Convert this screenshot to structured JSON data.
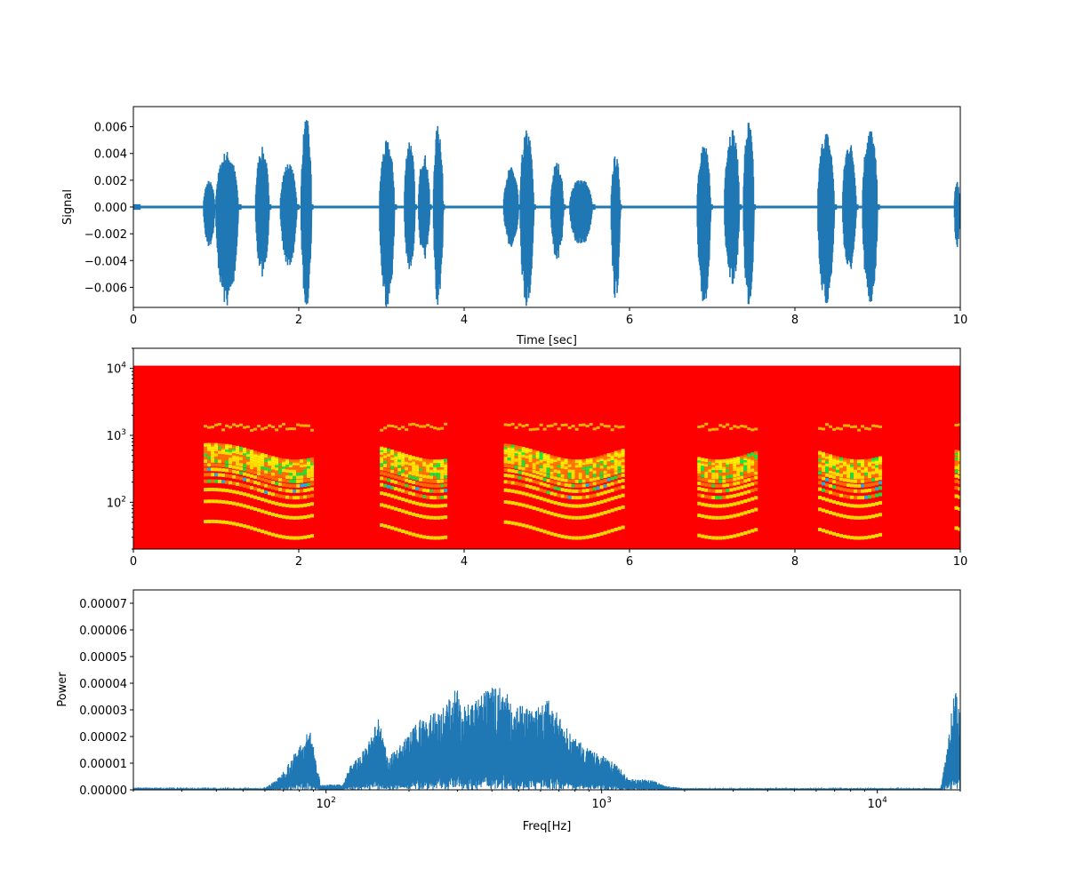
{
  "colors": {
    "line": "#1f77b4",
    "spec_bg": "#ff0000",
    "spec_mid": "#ffff00",
    "spec_high": "#00ff40",
    "spec_peak": "#00c8ff"
  },
  "chart_data": [
    {
      "type": "line",
      "xlabel": "Time [sec]",
      "ylabel": "Signal",
      "xlim": [
        0,
        10
      ],
      "ylim": [
        -0.0075,
        0.0075
      ],
      "xticks": [
        "0",
        "2",
        "4",
        "6",
        "8",
        "10"
      ],
      "yticks": [
        "0.006",
        "0.004",
        "0.002",
        "0.000",
        "−0.002",
        "−0.004",
        "−0.006"
      ],
      "grid": false,
      "envelope_bursts": [
        {
          "start": 0.0,
          "end": 0.08,
          "max": 0.0002,
          "min": -0.0002
        },
        {
          "start": 0.85,
          "end": 1.0,
          "max": 0.002,
          "min": -0.003
        },
        {
          "start": 1.0,
          "end": 1.3,
          "max": 0.0042,
          "min": -0.0075
        },
        {
          "start": 1.48,
          "end": 1.66,
          "max": 0.0045,
          "min": -0.0052
        },
        {
          "start": 1.78,
          "end": 2.0,
          "max": 0.0033,
          "min": -0.0045
        },
        {
          "start": 2.03,
          "end": 2.17,
          "max": 0.0067,
          "min": -0.0075
        },
        {
          "start": 2.98,
          "end": 3.18,
          "max": 0.005,
          "min": -0.0075
        },
        {
          "start": 3.28,
          "end": 3.42,
          "max": 0.0052,
          "min": -0.005
        },
        {
          "start": 3.45,
          "end": 3.6,
          "max": 0.004,
          "min": -0.004
        },
        {
          "start": 3.63,
          "end": 3.76,
          "max": 0.0062,
          "min": -0.0075
        },
        {
          "start": 4.48,
          "end": 4.68,
          "max": 0.003,
          "min": -0.003
        },
        {
          "start": 4.68,
          "end": 4.86,
          "max": 0.0058,
          "min": -0.0075
        },
        {
          "start": 5.05,
          "end": 5.22,
          "max": 0.0034,
          "min": -0.004
        },
        {
          "start": 5.28,
          "end": 5.58,
          "max": 0.0022,
          "min": -0.003
        },
        {
          "start": 5.78,
          "end": 5.9,
          "max": 0.0039,
          "min": -0.007
        },
        {
          "start": 6.82,
          "end": 7.0,
          "max": 0.0048,
          "min": -0.0075
        },
        {
          "start": 7.15,
          "end": 7.35,
          "max": 0.006,
          "min": -0.006
        },
        {
          "start": 7.38,
          "end": 7.52,
          "max": 0.0065,
          "min": -0.0075
        },
        {
          "start": 8.28,
          "end": 8.5,
          "max": 0.0057,
          "min": -0.0075
        },
        {
          "start": 8.58,
          "end": 8.76,
          "max": 0.005,
          "min": -0.005
        },
        {
          "start": 8.82,
          "end": 9.02,
          "max": 0.006,
          "min": -0.0075
        },
        {
          "start": 9.93,
          "end": 10.0,
          "max": 0.002,
          "min": -0.0032
        }
      ]
    },
    {
      "type": "heatmap",
      "xlim": [
        0,
        10
      ],
      "ylim": [
        20,
        20000
      ],
      "yscale": "log",
      "xticks": [
        "0",
        "2",
        "4",
        "6",
        "8",
        "10"
      ],
      "yticks": [
        {
          "base": "10",
          "exp": "4"
        },
        {
          "base": "10",
          "exp": "3"
        },
        {
          "base": "10",
          "exp": "2"
        }
      ],
      "fill_top_hz": 11000,
      "active_segments": [
        {
          "start": 0.85,
          "end": 2.17
        },
        {
          "start": 2.98,
          "end": 3.76
        },
        {
          "start": 4.48,
          "end": 5.9
        },
        {
          "start": 6.82,
          "end": 7.52
        },
        {
          "start": 8.28,
          "end": 9.02
        },
        {
          "start": 9.93,
          "end": 10.0
        }
      ]
    },
    {
      "type": "line",
      "xlabel": "Freq[Hz]",
      "ylabel": "Power",
      "xscale": "log",
      "xlim": [
        20,
        20000
      ],
      "ylim": [
        0,
        7.5e-05
      ],
      "xticks": [
        {
          "base": "10",
          "exp": "2"
        },
        {
          "base": "10",
          "exp": "3"
        },
        {
          "base": "10",
          "exp": "4"
        }
      ],
      "yticks": [
        "0.00007",
        "0.00006",
        "0.00005",
        "0.00004",
        "0.00003",
        "0.00002",
        "0.00001",
        "0.00000"
      ],
      "grid": false,
      "envelope": [
        [
          20,
          3e-07
        ],
        [
          60,
          6e-07
        ],
        [
          68,
          5e-06
        ],
        [
          75,
          1.2e-05
        ],
        [
          84,
          2e-05
        ],
        [
          88,
          2.4e-05
        ],
        [
          92,
          1e-05
        ],
        [
          96,
          2e-06
        ],
        [
          115,
          2e-06
        ],
        [
          122,
          9e-06
        ],
        [
          140,
          1.6e-05
        ],
        [
          155,
          2.7e-05
        ],
        [
          168,
          1.2e-05
        ],
        [
          190,
          1.8e-05
        ],
        [
          220,
          2.7e-05
        ],
        [
          260,
          3e-05
        ],
        [
          295,
          3.8e-05
        ],
        [
          340,
          3.2e-05
        ],
        [
          380,
          3.7e-05
        ],
        [
          420,
          4e-05
        ],
        [
          480,
          3.3e-05
        ],
        [
          560,
          3e-05
        ],
        [
          640,
          3.4e-05
        ],
        [
          760,
          2.2e-05
        ],
        [
          900,
          1.5e-05
        ],
        [
          1050,
          1.2e-05
        ],
        [
          1150,
          9e-06
        ],
        [
          1250,
          4e-06
        ],
        [
          1500,
          4e-06
        ],
        [
          1700,
          1.5e-06
        ],
        [
          2000,
          6e-07
        ],
        [
          17000,
          6e-07
        ],
        [
          17800,
          1.5e-05
        ],
        [
          19200,
          4e-05
        ],
        [
          20000,
          3e-05
        ]
      ]
    }
  ]
}
